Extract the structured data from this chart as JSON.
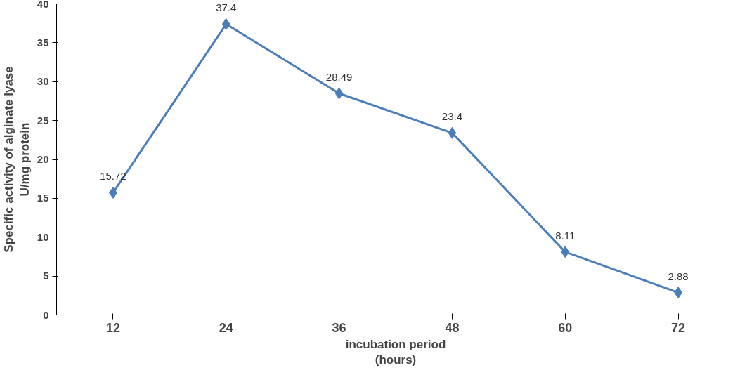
{
  "chart_data": {
    "type": "line",
    "xlabel": "incubation period\n(hours)",
    "ylabel": "Specific activity of alginate lyase\nU/mg protein",
    "categories": [
      "12",
      "24",
      "36",
      "48",
      "60",
      "72"
    ],
    "series": [
      {
        "color": "#4a7ebb",
        "values": [
          15.72,
          37.4,
          28.49,
          23.4,
          8.11,
          2.88
        ]
      }
    ],
    "ylim": [
      0,
      40
    ],
    "yticks": [
      0,
      5,
      10,
      15,
      20,
      25,
      30,
      35,
      40
    ],
    "grid": false,
    "marker": "diamond",
    "line_style": "solid",
    "data_labels": true
  }
}
